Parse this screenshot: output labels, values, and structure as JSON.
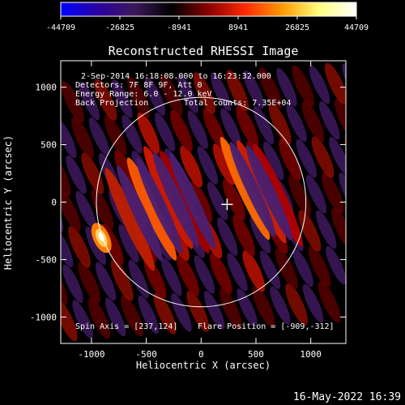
{
  "chart_data": {
    "type": "heatmap",
    "title": "Reconstructed RHESSI Image",
    "xlabel": "Heliocentric X (arcsec)",
    "ylabel": "Heliocentric Y (arcsec)",
    "xlim": [
      -1280,
      1320
    ],
    "ylim": [
      -1230,
      1230
    ],
    "xticks": [
      -1000,
      -500,
      0,
      500,
      1000
    ],
    "yticks": [
      -1000,
      -500,
      0,
      500,
      1000
    ],
    "xtick_labels": [
      "-1000",
      "-500",
      "0",
      "500",
      "1000"
    ],
    "ytick_labels": [
      "-1000",
      "-500",
      "0",
      "500",
      "1000"
    ],
    "colorbar": {
      "min": -44709,
      "max": 44709,
      "tick_values": [
        -44709,
        -26825,
        -8941,
        8941,
        26825,
        44709
      ],
      "tick_labels": [
        "-44709",
        "-26825",
        "-8941",
        "8941",
        "26825",
        "44709"
      ],
      "colors": [
        "#0000ff",
        "#2a00a0",
        "#3c1a5a",
        "#000000",
        "#8a0000",
        "#ff2a00",
        "#ff9a00",
        "#ffff80",
        "#ffffff"
      ]
    },
    "solar_limb_radius_arcsec": 955,
    "center_cross": [
      237,
      -20
    ],
    "bright_source": {
      "x": -909,
      "y": -312
    },
    "annotations": [
      "2-Sep-2014 16:18:08.000 to 16:23:32.000",
      "Detectors: 7F 8F 9F, Att 0",
      "Energy Range: 6.0 - 12.0 keV",
      "Back Projection",
      "Total counts: 7.35E+04"
    ],
    "spin_axis": "Spin Axis = [237,124]",
    "flare_position": "Flare Position = [-909,-312]"
  },
  "footer_timestamp": "16-May-2022 16:39"
}
